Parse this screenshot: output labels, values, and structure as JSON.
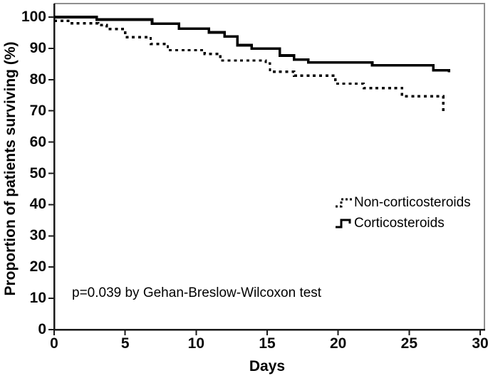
{
  "colors": {
    "curve": "#000000",
    "axis": "#1a1a1a",
    "frame_gray": "#8f8f8f",
    "background": "#ffffff"
  },
  "chart_data": {
    "type": "line",
    "subtype": "kaplan-meier-step",
    "title": "",
    "xlabel": "Days",
    "ylabel": "Proportion of patients surviving (%)",
    "xlim": [
      0,
      30
    ],
    "ylim": [
      0,
      100
    ],
    "x_ticks": [
      0,
      5,
      10,
      15,
      20,
      25,
      30
    ],
    "y_ticks": [
      0,
      10,
      20,
      30,
      40,
      50,
      60,
      70,
      80,
      90,
      100
    ],
    "grid": false,
    "legend_position": "right-middle",
    "annotation": "p=0.039 by Gehan-Breslow-Wilcoxon test",
    "series": [
      {
        "name": "Non-corticosteroids",
        "style": "dashed",
        "points": [
          [
            0,
            98.8
          ],
          [
            1,
            98.0
          ],
          [
            3.1,
            97.4
          ],
          [
            3.7,
            96.2
          ],
          [
            5,
            93.6
          ],
          [
            6.8,
            91.4
          ],
          [
            8,
            89.4
          ],
          [
            10.6,
            88.2
          ],
          [
            11.7,
            86.1
          ],
          [
            14.9,
            85.2
          ],
          [
            15.2,
            82.5
          ],
          [
            16.9,
            81.3
          ],
          [
            19.8,
            78.7
          ],
          [
            21.8,
            77.3
          ],
          [
            24.5,
            74.7
          ],
          [
            27.4,
            69.8
          ],
          [
            27.6,
            69.8
          ]
        ]
      },
      {
        "name": "Corticosteroids",
        "style": "solid",
        "points": [
          [
            0,
            100
          ],
          [
            3,
            99.2
          ],
          [
            6.9,
            97.9
          ],
          [
            8.8,
            96.3
          ],
          [
            10.9,
            95.1
          ],
          [
            12,
            93.8
          ],
          [
            12.9,
            91.0
          ],
          [
            13.9,
            89.9
          ],
          [
            15.9,
            87.7
          ],
          [
            16.9,
            86.4
          ],
          [
            17.9,
            85.5
          ],
          [
            22.4,
            84.6
          ],
          [
            26.7,
            83.0
          ],
          [
            27.8,
            82.3
          ]
        ]
      }
    ]
  }
}
